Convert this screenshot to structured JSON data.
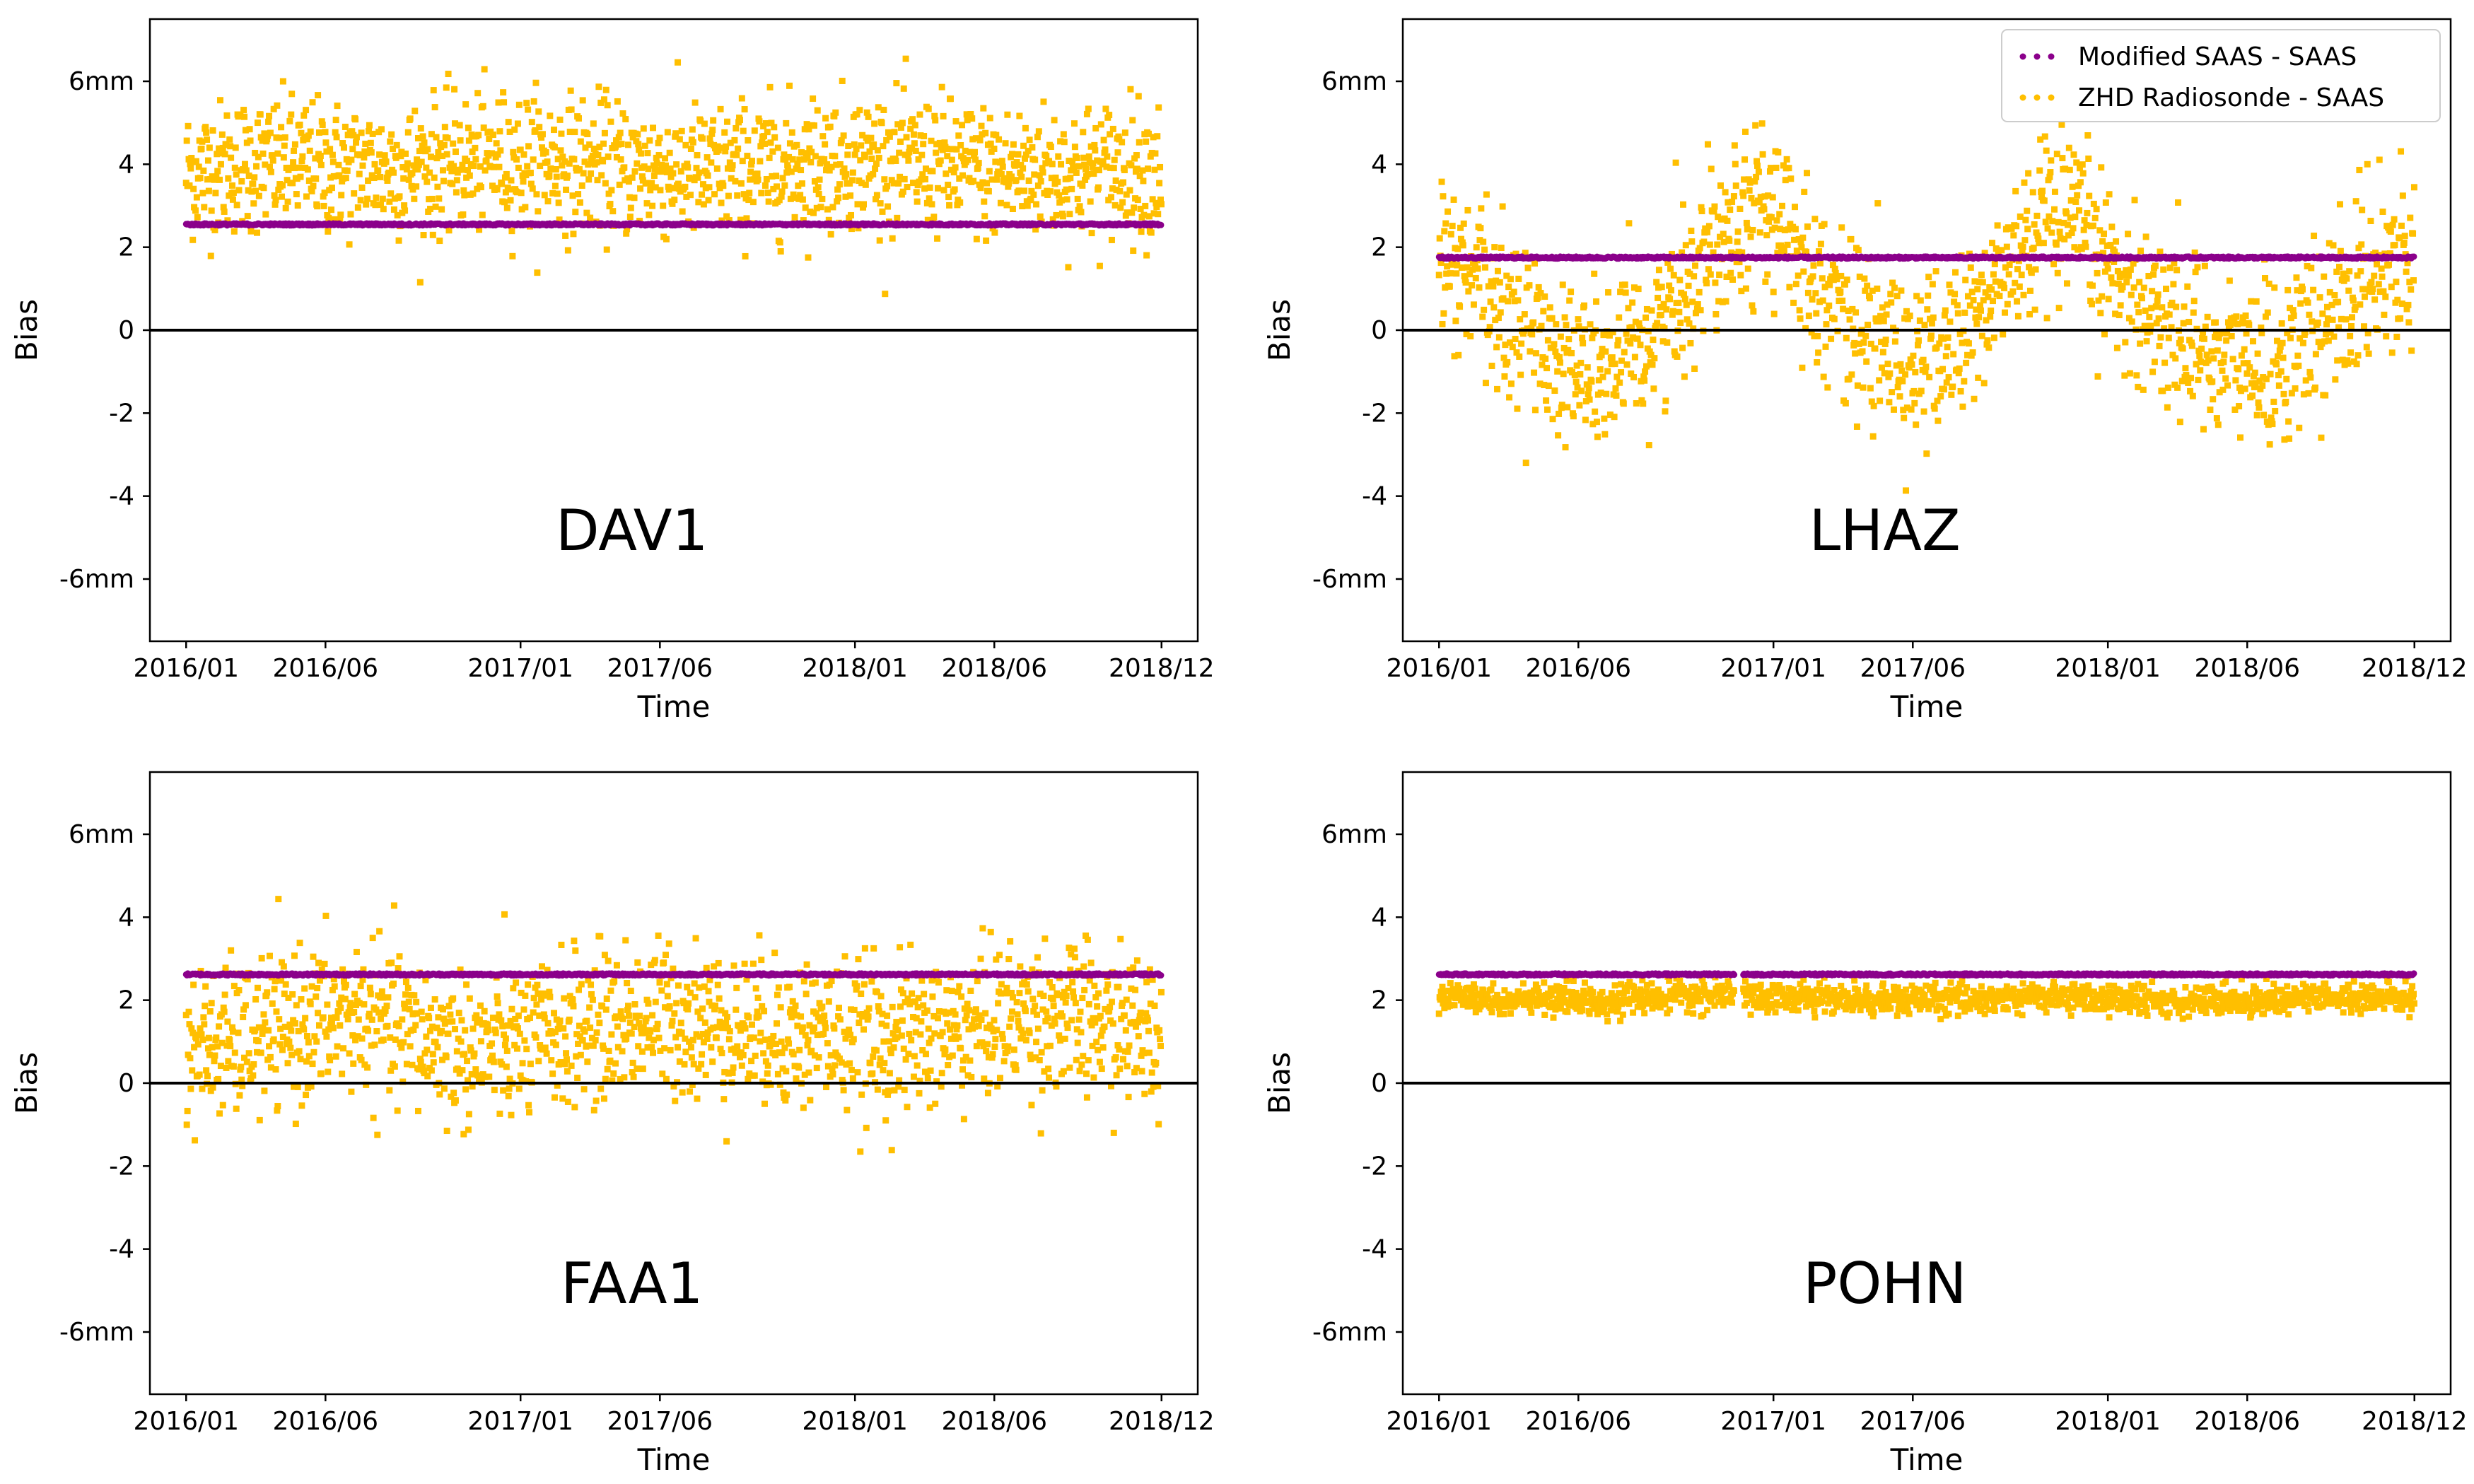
{
  "chart_data": {
    "type": "scatter",
    "colors": {
      "modified": "#8B008B",
      "radiosonde": "#FFBF00",
      "zero_line": "#000000",
      "frame": "#000000"
    },
    "legend": {
      "location": "top-right",
      "panel": "LHAZ",
      "entries": [
        {
          "name": "Modified SAAS - SAAS",
          "color": "#8B008B"
        },
        {
          "name": "ZHD Radiosonde - SAAS",
          "color": "#FFBF00"
        }
      ]
    },
    "shared_axes": {
      "xlabel": "Time",
      "ylabel": "Bias",
      "x_range_months": [
        -1.3,
        36.3
      ],
      "x_ticks": [
        {
          "month_index": 0,
          "label": "2016/01"
        },
        {
          "month_index": 5,
          "label": "2016/06"
        },
        {
          "month_index": 12,
          "label": "2017/01"
        },
        {
          "month_index": 17,
          "label": "2017/06"
        },
        {
          "month_index": 24,
          "label": "2018/01"
        },
        {
          "month_index": 29,
          "label": "2018/06"
        },
        {
          "month_index": 35,
          "label": "2018/12"
        }
      ],
      "ylim": [
        -7.5,
        7.5
      ],
      "y_ticks": [
        {
          "value": 6,
          "label": "6mm"
        },
        {
          "value": 4,
          "label": "4"
        },
        {
          "value": 2,
          "label": "2"
        },
        {
          "value": 0,
          "label": "0"
        },
        {
          "value": -2,
          "label": "-2"
        },
        {
          "value": -4,
          "label": "-4"
        },
        {
          "value": -6,
          "label": "-6mm"
        }
      ],
      "zero_line": 0
    },
    "panels": [
      {
        "station": "DAV1",
        "series": [
          {
            "name": "Modified SAAS - SAAS",
            "value_mm": 2.55,
            "x_start": 0,
            "x_end": 35,
            "gaps": []
          },
          {
            "name": "ZHD Radiosonde - SAAS",
            "x_start": 0,
            "x_end": 35,
            "gaps": [],
            "mean_mm": [
              3.8,
              3.9,
              4.0,
              4.0,
              4.0,
              3.9,
              3.9,
              3.9,
              3.9,
              4.0,
              4.0,
              4.1,
              4.1,
              4.1,
              4.0,
              4.0,
              3.9,
              3.9,
              3.8,
              3.8,
              3.9,
              3.9,
              4.0,
              4.1,
              4.1,
              4.1,
              4.0,
              4.0,
              3.9,
              3.8,
              3.8,
              3.8,
              3.8,
              3.9,
              3.9,
              3.9
            ],
            "spread_mm": 0.8
          }
        ]
      },
      {
        "station": "LHAZ",
        "series": [
          {
            "name": "Modified SAAS - SAAS",
            "value_mm": 1.75,
            "x_start": 0,
            "x_end": 35,
            "gaps": []
          },
          {
            "name": "ZHD Radiosonde - SAAS",
            "x_start": 0,
            "x_end": 35,
            "gaps": [],
            "mean_mm": [
              1.6,
              1.3,
              0.6,
              0.2,
              -0.4,
              -0.9,
              -1.0,
              -0.6,
              0.2,
              1.2,
              2.4,
              3.1,
              2.8,
              1.8,
              0.8,
              0.1,
              -0.5,
              -0.8,
              -0.6,
              0.0,
              1.0,
              2.0,
              2.6,
              2.4,
              1.6,
              0.8,
              0.2,
              -0.3,
              -0.6,
              -0.8,
              -0.8,
              -0.4,
              0.3,
              1.0,
              1.8,
              1.8
            ],
            "spread_mm": 1.0
          }
        ]
      },
      {
        "station": "FAA1",
        "series": [
          {
            "name": "Modified SAAS - SAAS",
            "value_mm": 2.62,
            "x_start": 0,
            "x_end": 35,
            "gaps": []
          },
          {
            "name": "ZHD Radiosonde - SAAS",
            "x_start": 0,
            "x_end": 35,
            "gaps": [],
            "mean_mm": [
              0.8,
              0.9,
              1.0,
              1.2,
              1.3,
              1.5,
              1.6,
              1.4,
              1.2,
              1.0,
              0.8,
              0.8,
              0.9,
              1.1,
              1.3,
              1.4,
              1.5,
              1.6,
              1.5,
              1.4,
              1.3,
              1.2,
              1.2,
              1.2,
              1.1,
              1.0,
              1.1,
              1.2,
              1.3,
              1.5,
              1.6,
              1.6,
              1.5,
              1.4,
              1.3,
              1.1
            ],
            "spread_mm": 0.9
          }
        ]
      },
      {
        "station": "POHN",
        "series": [
          {
            "name": "Modified SAAS - SAAS",
            "value_mm": 2.62,
            "x_start": 0,
            "x_end": 35,
            "gaps": [
              [
                10.6,
                10.9
              ]
            ]
          },
          {
            "name": "ZHD Radiosonde - SAAS",
            "x_start": 0,
            "x_end": 35,
            "gaps": [
              [
                10.6,
                10.9
              ]
            ],
            "mean_mm": [
              2.05,
              2.05,
              2.0,
              2.0,
              2.0,
              2.0,
              2.0,
              2.05,
              2.05,
              2.1,
              2.1,
              2.1,
              2.1,
              2.05,
              2.05,
              2.0,
              2.0,
              2.0,
              2.0,
              2.05,
              2.05,
              2.05,
              2.1,
              2.05,
              2.05,
              2.0,
              2.0,
              2.0,
              2.0,
              2.0,
              2.05,
              2.05,
              2.05,
              2.05,
              2.05,
              2.05
            ],
            "spread_mm": 0.18
          }
        ]
      }
    ]
  }
}
